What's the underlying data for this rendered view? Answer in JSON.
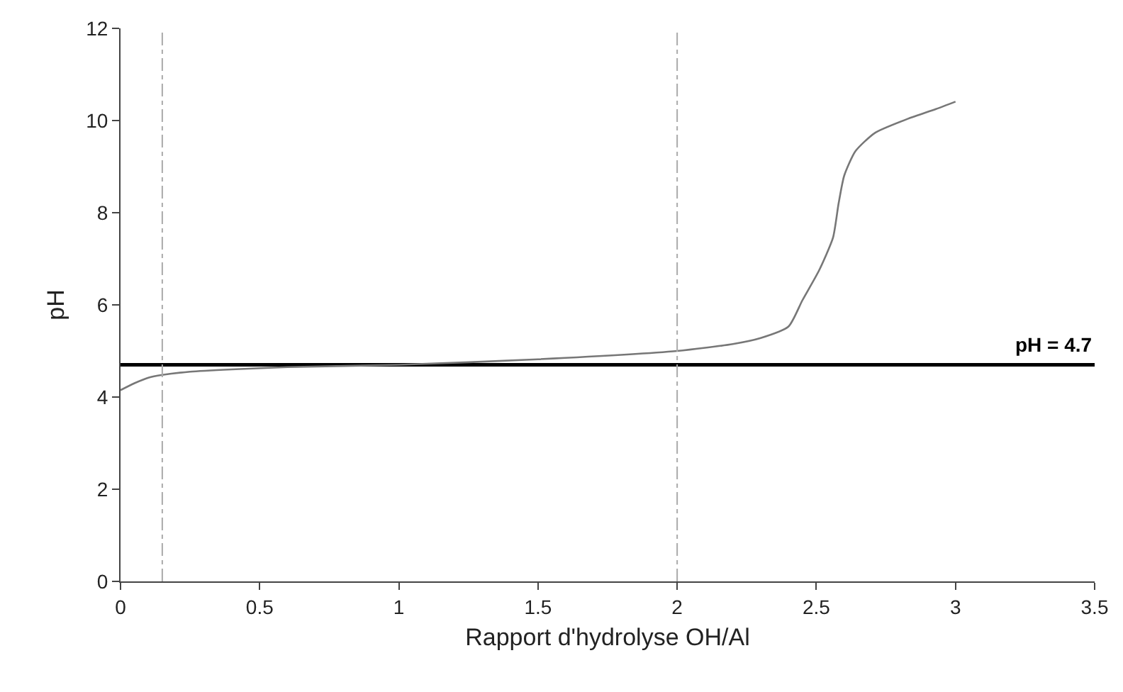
{
  "chart_data": {
    "type": "line",
    "xlabel": "Rapport d'hydrolyse OH/Al",
    "ylabel": "pH",
    "x": [
      0,
      0.05,
      0.1,
      0.15,
      0.25,
      0.4,
      0.6,
      1,
      1.5,
      2,
      2.2,
      2.3,
      2.4,
      2.45,
      2.51,
      2.56,
      2.58,
      2.6,
      2.64,
      2.71,
      2.83,
      2.93,
      3
    ],
    "series": [
      {
        "color": "#777777",
        "values": [
          4.15,
          4.3,
          4.42,
          4.48,
          4.55,
          4.6,
          4.65,
          4.7,
          4.82,
          5.0,
          5.15,
          5.28,
          5.53,
          6.1,
          6.75,
          7.46,
          8.2,
          8.8,
          9.33,
          9.73,
          10.04,
          10.25,
          10.41
        ]
      }
    ],
    "xlim": [
      0,
      3.5
    ],
    "xticks": [
      0,
      0.5,
      1,
      1.5,
      2,
      2.5,
      3,
      3.5
    ],
    "ylim": [
      0,
      12
    ],
    "yticks": [
      0,
      2,
      4,
      6,
      8,
      10,
      12
    ],
    "grid": false,
    "marker": "none",
    "line_style": "solid",
    "ref_lines": [
      {
        "axis": "y",
        "value": 4.7,
        "label": "pH = 4.7",
        "color": "#000000",
        "line_style": "solid"
      },
      {
        "axis": "x",
        "value": 0.15,
        "color": "#aaaaaa",
        "line_style": "dashed"
      },
      {
        "axis": "x",
        "value": 2,
        "color": "#aaaaaa",
        "line_style": "dashed"
      }
    ]
  }
}
